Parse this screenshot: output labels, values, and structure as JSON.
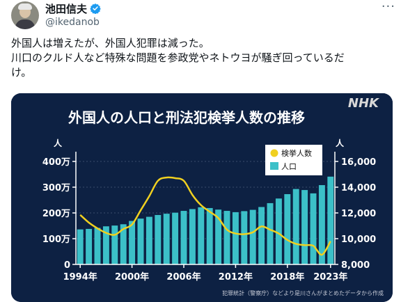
{
  "author": {
    "display_name": "池田信夫",
    "handle": "@ikedanob"
  },
  "tweet": {
    "lines": [
      "外国人は増えたが、外国人犯罪は減った。",
      "川口のクルド人など特殊な問題を参政党やネトウヨが騒ぎ回っているだ",
      "け。"
    ]
  },
  "icons": {
    "verified": "verified-badge-icon",
    "more": "more-options-icon"
  },
  "colors": {
    "chart_bg": "#0d2143",
    "bar": "#3cc0c8",
    "line": "#f0d020"
  },
  "chart_data": {
    "type": "bar",
    "title": "外国人の人口と刑法犯検挙人数の推移",
    "brand": "NHK",
    "left_unit": "人",
    "right_unit": "人",
    "legend": [
      "検挙人数",
      "人口"
    ],
    "legend_placement": "top-center",
    "left_ticks": [
      "0",
      "100万",
      "200万",
      "300万",
      "400万"
    ],
    "right_ticks": [
      "8,000",
      "10,000",
      "12,000",
      "14,000",
      "16,000"
    ],
    "x_tick_labels": [
      "1994年",
      "2000年",
      "2006年",
      "2012年",
      "2018年",
      "2023年"
    ],
    "years": [
      1994,
      1995,
      1996,
      1997,
      1998,
      1999,
      2000,
      2001,
      2002,
      2003,
      2004,
      2005,
      2006,
      2007,
      2008,
      2009,
      2010,
      2011,
      2012,
      2013,
      2014,
      2015,
      2016,
      2017,
      2018,
      2019,
      2020,
      2021,
      2022,
      2023
    ],
    "series": [
      {
        "name": "人口",
        "kind": "bar",
        "axis": "left",
        "values": [
          1.36,
          1.38,
          1.42,
          1.48,
          1.51,
          1.56,
          1.69,
          1.78,
          1.85,
          1.92,
          1.97,
          2.01,
          2.08,
          2.15,
          2.22,
          2.19,
          2.13,
          2.08,
          2.03,
          2.07,
          2.12,
          2.23,
          2.38,
          2.56,
          2.73,
          2.93,
          2.89,
          2.76,
          3.08,
          3.41
        ]
      },
      {
        "name": "検挙人数",
        "kind": "line",
        "axis": "right",
        "values": [
          11850,
          11250,
          10800,
          10450,
          10300,
          10750,
          11100,
          12200,
          13300,
          14500,
          14750,
          14700,
          14500,
          13400,
          12600,
          12100,
          11600,
          10700,
          10400,
          10350,
          10500,
          10950,
          10700,
          10400,
          9900,
          9600,
          9500,
          9450,
          8750,
          9800
        ]
      }
    ],
    "left_ylim": [
      0,
      400
    ],
    "left_ylim_unit_note": "万人",
    "right_ylim": [
      8000,
      16000
    ],
    "source": "犯罪統計（警察庁）などより是川さんがまとめたデータから作成"
  }
}
